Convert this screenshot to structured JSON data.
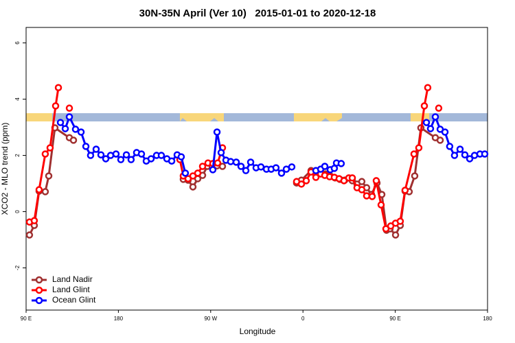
{
  "chart_data": {
    "type": "line",
    "title": "30N-35N April (Ver 10)   2015-01-01 to 2020-12-18",
    "x_label": "Longitude",
    "y_label": "XCO2 - MLO trend (ppm)",
    "xlim": [
      90,
      540
    ],
    "ylim": [
      -3.5,
      6.55
    ],
    "xticks": [
      {
        "value": 90,
        "label": "90 E"
      },
      180,
      {
        "value": 270,
        "label": "90 W"
      },
      {
        "value": 360,
        "label": "0"
      },
      {
        "value": 450,
        "label": "90 E"
      },
      {
        "value": 540,
        "label": "180"
      }
    ],
    "yticks": [
      6,
      4,
      2,
      0,
      -2
    ],
    "legend": "bottom-left",
    "series": [
      {
        "name": "Land Nadir",
        "color": "#a03030",
        "x": [
          93.3,
          98.0,
          102.7,
          108.7,
          112.1,
          118.1,
          132.2,
          136.2,
          null,
          243.3,
          248.0,
          252.7,
          257.4,
          262.1,
          266.8,
          271.5,
          276.2,
          281.5,
          null,
          353.8,
          358.5,
          367.9,
          372.6,
          377.3,
          381.9,
          386.6,
          391.3,
          396.0,
          400.7,
          408.1,
          412.7,
          417.4,
          422.1,
          426.8,
          432.2,
          436.9,
          441.5,
          444.9,
          450.3,
          454.9,
          459.6,
          463.6,
          469.0,
          475.0,
          489.1,
          493.8
        ],
        "values": [
          -0.83,
          -0.49,
          0.73,
          0.71,
          1.27,
          2.98,
          2.63,
          2.54,
          null,
          1.15,
          1.12,
          0.88,
          1.17,
          1.29,
          1.61,
          1.61,
          1.63,
          1.61,
          null,
          1.02,
          1.12,
          1.46,
          1.32,
          1.51,
          1.34,
          1.27,
          1.2,
          1.15,
          1.12,
          1.1,
          0.98,
          1.07,
          0.85,
          0.61,
          1.02,
          0.61,
          -0.66,
          -0.61,
          -0.83,
          -0.49,
          0.73,
          0.71,
          1.27,
          2.98,
          2.63,
          2.54
        ]
      },
      {
        "name": "Land Glint",
        "color": "#ff0000",
        "x": [
          93.3,
          98.0,
          102.7,
          108.7,
          113.4,
          118.8,
          121.5,
          null,
          132.2,
          null,
          240.0,
          243.3,
          248.0,
          252.7,
          257.4,
          262.1,
          267.4,
          272.1,
          276.8,
          281.5,
          null,
          353.8,
          358.5,
          363.2,
          367.9,
          372.6,
          377.3,
          381.3,
          386.0,
          390.6,
          395.3,
          400.0,
          404.7,
          408.1,
          412.7,
          417.4,
          422.1,
          427.5,
          431.5,
          436.2,
          440.9,
          445.6,
          450.3,
          454.9,
          459.6,
          468.3,
          473.0,
          478.4,
          481.7,
          null,
          492.4
        ],
        "values": [
          -0.37,
          -0.32,
          0.78,
          2.05,
          2.27,
          3.76,
          4.41,
          null,
          3.68,
          null,
          1.85,
          1.27,
          1.17,
          1.27,
          1.37,
          1.61,
          1.73,
          1.71,
          1.73,
          2.27,
          null,
          1.07,
          0.98,
          1.1,
          1.41,
          1.22,
          1.34,
          1.29,
          1.24,
          1.22,
          1.17,
          1.1,
          1.2,
          1.2,
          0.85,
          0.78,
          0.56,
          0.54,
          1.1,
          0.24,
          -0.61,
          -0.51,
          -0.41,
          -0.34,
          0.76,
          2.05,
          2.27,
          3.76,
          4.41,
          null,
          3.68
        ]
      },
      {
        "name": "Ocean Glint",
        "color": "#0000ff",
        "x": [
          123.5,
          128.2,
          132.2,
          138.2,
          143.6,
          148.3,
          152.9,
          158.3,
          163.0,
          167.7,
          172.4,
          177.7,
          182.4,
          187.8,
          192.4,
          197.8,
          202.5,
          207.2,
          211.9,
          217.2,
          221.9,
          227.3,
          232.0,
          237.3,
          241.3,
          245.3,
          null,
          272.1,
          276.2,
          280.2,
          284.9,
          289.5,
          294.9,
          299.6,
          304.3,
          309.0,
          314.3,
          319.0,
          324.4,
          329.0,
          333.7,
          339.1,
          343.8,
          349.1,
          null,
          372.6,
          377.3,
          381.3,
          386.6,
          390.6,
          392.7,
          397.3,
          null,
          480.4,
          484.4,
          489.1,
          493.8,
          498.5,
          503.1,
          507.8,
          513.2,
          517.9,
          522.6,
          527.3,
          532.6,
          537.3
        ],
        "values": [
          3.17,
          2.95,
          3.37,
          2.93,
          2.83,
          2.32,
          2.0,
          2.22,
          2.02,
          1.88,
          2.0,
          2.05,
          1.85,
          2.02,
          1.85,
          2.1,
          2.05,
          1.8,
          1.88,
          2.0,
          2.0,
          1.88,
          1.8,
          2.02,
          1.95,
          1.37,
          null,
          1.49,
          2.83,
          2.1,
          1.83,
          1.78,
          1.76,
          1.61,
          1.46,
          1.76,
          1.56,
          1.59,
          1.51,
          1.51,
          1.56,
          1.37,
          1.51,
          1.59,
          null,
          1.46,
          1.51,
          1.61,
          1.49,
          1.54,
          1.73,
          1.71,
          null,
          3.17,
          2.95,
          3.37,
          2.93,
          2.83,
          2.32,
          2.0,
          2.22,
          2.02,
          1.88,
          2.0,
          2.05,
          2.05
        ]
      }
    ]
  }
}
